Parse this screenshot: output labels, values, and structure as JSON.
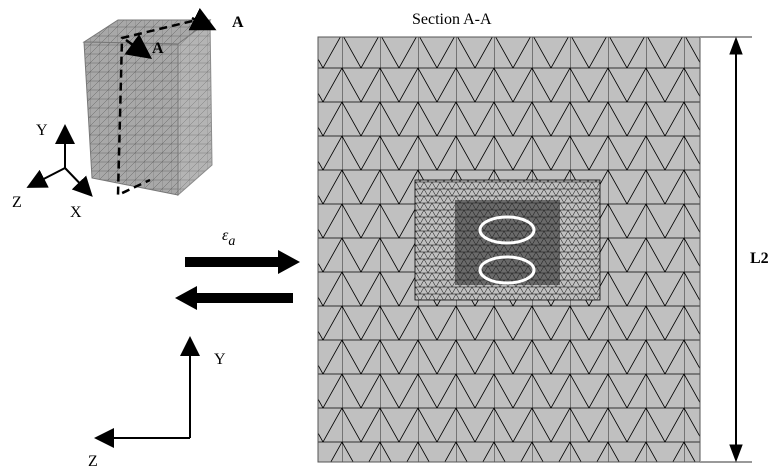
{
  "section_title": "Section A-A",
  "section_markers": [
    "A",
    "A"
  ],
  "cube_axes": {
    "y": "Y",
    "z": "Z",
    "x": "X"
  },
  "strain": {
    "symbol": "ε",
    "subscript": "a"
  },
  "global_axes": {
    "y": "Y",
    "z": "Z"
  },
  "dimension": "L2"
}
